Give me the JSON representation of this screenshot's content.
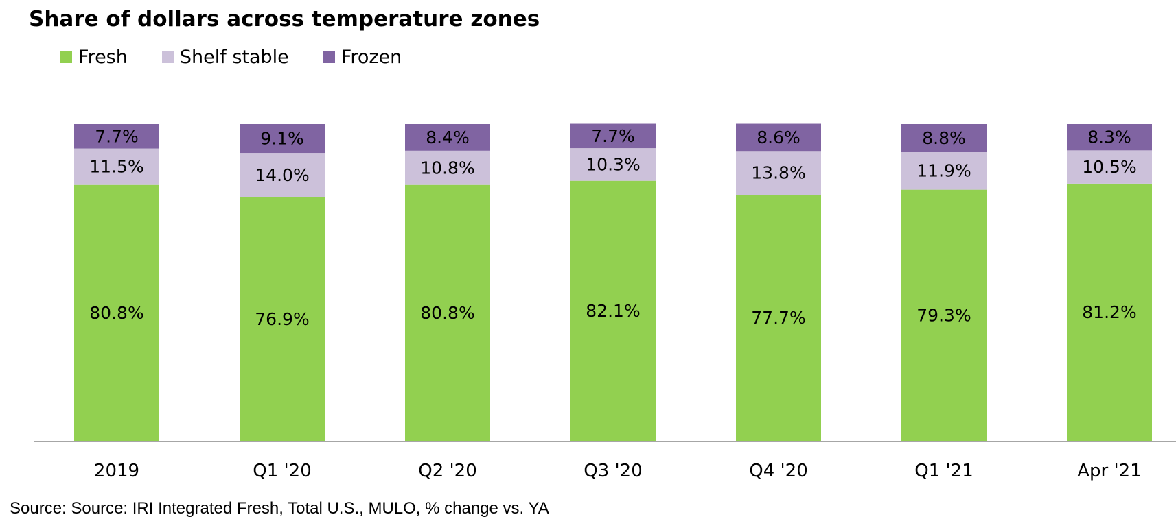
{
  "chart_data": {
    "type": "bar",
    "stacked": true,
    "title": "Share of dollars across temperature zones",
    "categories": [
      "2019",
      "Q1 '20",
      "Q2 '20",
      "Q3 '20",
      "Q4 '20",
      "Q1 '21",
      "Apr '21"
    ],
    "series": [
      {
        "name": "Fresh",
        "color": "#92D050",
        "values": [
          80.8,
          76.9,
          80.8,
          82.1,
          77.7,
          79.3,
          81.2
        ],
        "labels": [
          "80.8%",
          "76.9%",
          "80.8%",
          "82.1%",
          "77.7%",
          "79.3%",
          "81.2%"
        ]
      },
      {
        "name": "Shelf stable",
        "color": "#CCC1DA",
        "values": [
          11.5,
          14.0,
          10.8,
          10.3,
          13.8,
          11.9,
          10.5
        ],
        "labels": [
          "11.5%",
          "14.0%",
          "10.8%",
          "10.3%",
          "13.8%",
          "11.9%",
          "10.5%"
        ]
      },
      {
        "name": "Frozen",
        "color": "#8064A2",
        "values": [
          7.7,
          9.1,
          8.4,
          7.7,
          8.6,
          8.8,
          8.3
        ],
        "labels": [
          "7.7%",
          "9.1%",
          "8.4%",
          "7.7%",
          "8.6%",
          "8.8%",
          "8.3%"
        ]
      }
    ],
    "xlabel": "",
    "ylabel": "",
    "ylim": [
      0,
      100
    ],
    "grid": false,
    "legend": "top-left"
  },
  "source": "Source: Source: IRI Integrated Fresh, Total U.S., MULO, % change vs. YA",
  "colors": {
    "axis": "#A6A6A6",
    "text": "#000000"
  }
}
